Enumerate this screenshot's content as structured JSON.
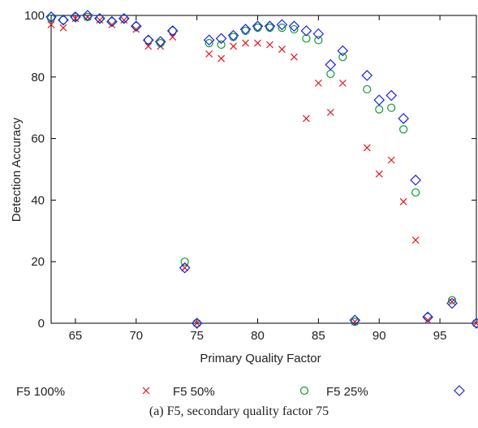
{
  "caption": "(a) F5, secondary quality factor 75",
  "chart_data": {
    "type": "scatter",
    "xlabel": "Primary Quality Factor",
    "ylabel": "Detection Accuracy",
    "xlim": [
      63,
      98
    ],
    "ylim": [
      0,
      100
    ],
    "xticks": [
      65,
      70,
      75,
      80,
      85,
      90,
      95
    ],
    "yticks": [
      0,
      20,
      40,
      60,
      80,
      100
    ],
    "grid": false,
    "legend_position": "bottom",
    "series": [
      {
        "name": "F5 100%",
        "marker": "cross",
        "color": "#e8141c",
        "points": [
          [
            63,
            97
          ],
          [
            64,
            96
          ],
          [
            65,
            99
          ],
          [
            66,
            99.5
          ],
          [
            67,
            98.5
          ],
          [
            68,
            97
          ],
          [
            69,
            98.5
          ],
          [
            70,
            95.5
          ],
          [
            71,
            90
          ],
          [
            72,
            90
          ],
          [
            73,
            93
          ],
          [
            74,
            18
          ],
          [
            75,
            0
          ],
          [
            76,
            87.5
          ],
          [
            77,
            86
          ],
          [
            78,
            90
          ],
          [
            79,
            91
          ],
          [
            80,
            91
          ],
          [
            81,
            90.5
          ],
          [
            82,
            89
          ],
          [
            83,
            86.5
          ],
          [
            84,
            66.5
          ],
          [
            85,
            78
          ],
          [
            86,
            68.5
          ],
          [
            87,
            78
          ],
          [
            88,
            0.5
          ],
          [
            89,
            57
          ],
          [
            90,
            48.5
          ],
          [
            91,
            53
          ],
          [
            92,
            39.5
          ],
          [
            93,
            27
          ],
          [
            94,
            1
          ],
          [
            96,
            7
          ],
          [
            98,
            0
          ]
        ]
      },
      {
        "name": "F5 50%",
        "marker": "circle",
        "color": "#119a2b",
        "points": [
          [
            63,
            99
          ],
          [
            64,
            98.5
          ],
          [
            65,
            99.5
          ],
          [
            66,
            99.5
          ],
          [
            67,
            99
          ],
          [
            68,
            98
          ],
          [
            69,
            99
          ],
          [
            70,
            96.5
          ],
          [
            71,
            92
          ],
          [
            72,
            91
          ],
          [
            73,
            95
          ],
          [
            74,
            20
          ],
          [
            75,
            0
          ],
          [
            76,
            91
          ],
          [
            77,
            90.5
          ],
          [
            78,
            93
          ],
          [
            79,
            95
          ],
          [
            80,
            96
          ],
          [
            81,
            96
          ],
          [
            82,
            96
          ],
          [
            83,
            95.5
          ],
          [
            84,
            92.5
          ],
          [
            85,
            92
          ],
          [
            86,
            81
          ],
          [
            87,
            86.5
          ],
          [
            88,
            0.5
          ],
          [
            89,
            76
          ],
          [
            90,
            69.5
          ],
          [
            91,
            70
          ],
          [
            92,
            63
          ],
          [
            93,
            42.5
          ],
          [
            94,
            2
          ],
          [
            96,
            7.5
          ],
          [
            98,
            0
          ]
        ]
      },
      {
        "name": "F5 25%",
        "marker": "diamond",
        "color": "#1c25e0",
        "points": [
          [
            63,
            99.5
          ],
          [
            64,
            98.5
          ],
          [
            65,
            99.5
          ],
          [
            66,
            100
          ],
          [
            67,
            99
          ],
          [
            68,
            98
          ],
          [
            69,
            99
          ],
          [
            70,
            96.5
          ],
          [
            71,
            92
          ],
          [
            72,
            91.5
          ],
          [
            73,
            95
          ],
          [
            74,
            18
          ],
          [
            75,
            0
          ],
          [
            76,
            92
          ],
          [
            77,
            92.5
          ],
          [
            78,
            93.5
          ],
          [
            79,
            95.5
          ],
          [
            80,
            96.5
          ],
          [
            81,
            96.5
          ],
          [
            82,
            97
          ],
          [
            83,
            96.5
          ],
          [
            84,
            95
          ],
          [
            85,
            94
          ],
          [
            86,
            84
          ],
          [
            87,
            88.5
          ],
          [
            88,
            1
          ],
          [
            89,
            80.5
          ],
          [
            90,
            72.5
          ],
          [
            91,
            74
          ],
          [
            92,
            66.5
          ],
          [
            93,
            46.5
          ],
          [
            94,
            2
          ],
          [
            96,
            6.5
          ],
          [
            98,
            0
          ]
        ]
      }
    ]
  }
}
